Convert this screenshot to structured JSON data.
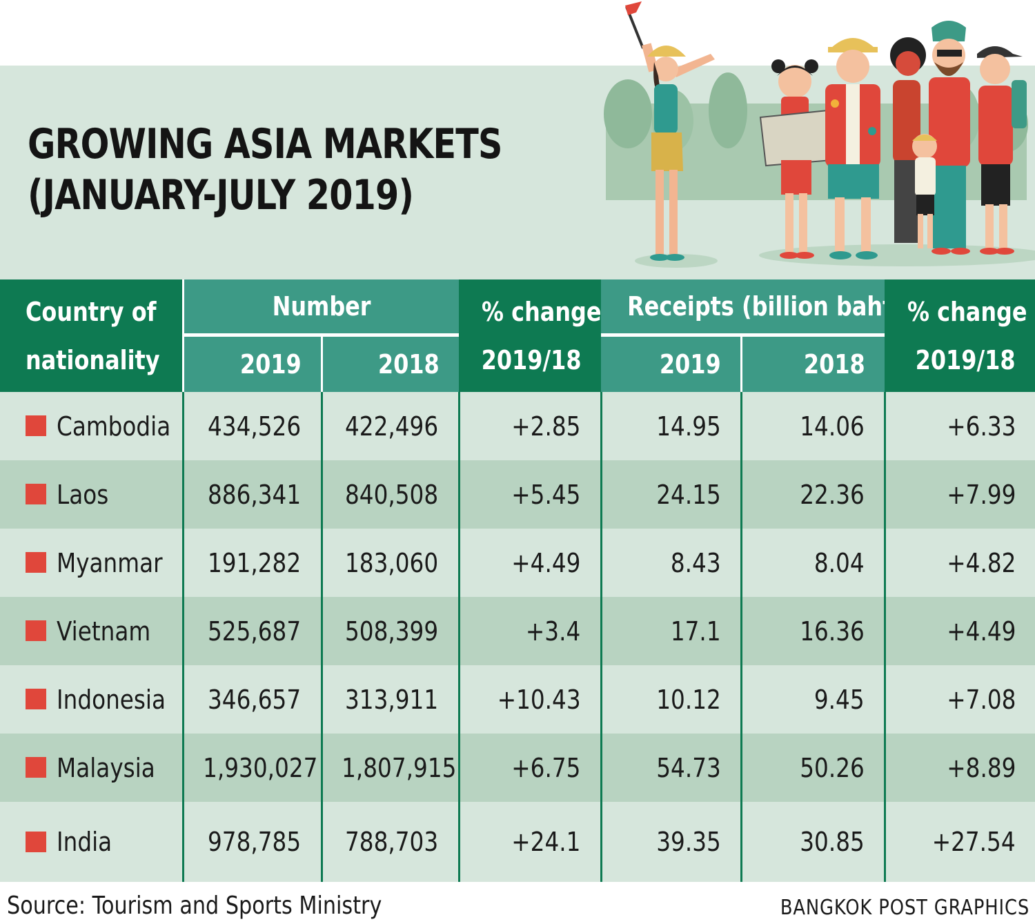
{
  "title_line1": "GROWING ASIA MARKETS",
  "title_line2": "(JANUARY-JULY 2019)",
  "colors": {
    "header_dark": "#0e7a52",
    "header_teal": "#3d9a86",
    "row_light": "#d6e6dc",
    "row_dark": "#b8d3c1",
    "marker": "#e0473b"
  },
  "illustration_icon": "tourists-group-illustration",
  "chart_data": {
    "type": "table",
    "title": "GROWING ASIA MARKETS (JANUARY-JULY 2019)",
    "headers": {
      "country_line1": "Country of",
      "country_line2": "nationality",
      "number": "Number",
      "pct_change_line1": "% change",
      "pct_change_line2": "2019/18",
      "receipts": "Receipts (billion baht)",
      "y2019": "2019",
      "y2018": "2018"
    },
    "rows": [
      {
        "country": "Cambodia",
        "num_2019": "434,526",
        "num_2018": "422,496",
        "num_change": "+2.85",
        "rec_2019": "14.95",
        "rec_2018": "14.06",
        "rec_change": "+6.33"
      },
      {
        "country": "Laos",
        "num_2019": "886,341",
        "num_2018": "840,508",
        "num_change": "+5.45",
        "rec_2019": "24.15",
        "rec_2018": "22.36",
        "rec_change": "+7.99"
      },
      {
        "country": "Myanmar",
        "num_2019": "191,282",
        "num_2018": "183,060",
        "num_change": "+4.49",
        "rec_2019": "8.43",
        "rec_2018": "8.04",
        "rec_change": "+4.82"
      },
      {
        "country": "Vietnam",
        "num_2019": "525,687",
        "num_2018": "508,399",
        "num_change": "+3.4",
        "rec_2019": "17.1",
        "rec_2018": "16.36",
        "rec_change": "+4.49"
      },
      {
        "country": "Indonesia",
        "num_2019": "346,657",
        "num_2018": "313,911",
        "num_change": "+10.43",
        "rec_2019": "10.12",
        "rec_2018": "9.45",
        "rec_change": "+7.08"
      },
      {
        "country": "Malaysia",
        "num_2019": "1,930,027",
        "num_2018": "1,807,915",
        "num_change": "+6.75",
        "rec_2019": "54.73",
        "rec_2018": "50.26",
        "rec_change": "+8.89"
      },
      {
        "country": "India",
        "num_2019": "978,785",
        "num_2018": "788,703",
        "num_change": "+24.1",
        "rec_2019": "39.35",
        "rec_2018": "30.85",
        "rec_change": "+27.54"
      }
    ]
  },
  "source": "Source: Tourism and Sports Ministry",
  "credit": "BANGKOK POST GRAPHICS"
}
